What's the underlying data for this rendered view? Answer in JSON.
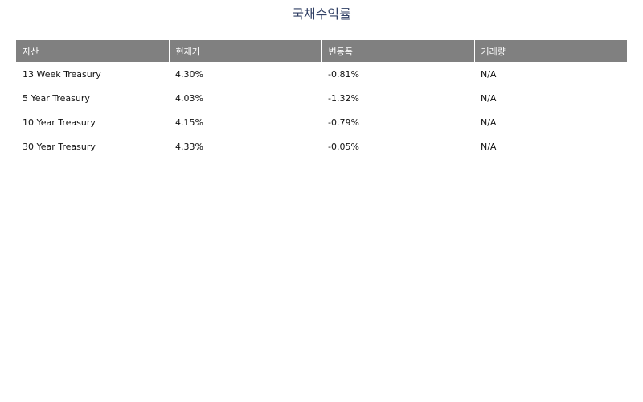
{
  "title": "국채수익률",
  "table": {
    "headers": [
      "자산",
      "현재가",
      "변동폭",
      "거래량"
    ],
    "rows": [
      [
        "13 Week Treasury",
        "4.30%",
        "-0.81%",
        "N/A"
      ],
      [
        "5 Year Treasury",
        "4.03%",
        "-1.32%",
        "N/A"
      ],
      [
        "10 Year Treasury",
        "4.15%",
        "-0.79%",
        "N/A"
      ],
      [
        "30 Year Treasury",
        "4.33%",
        "-0.05%",
        "N/A"
      ]
    ]
  },
  "colors": {
    "title": "#2f3e63",
    "header_bg": "#808080",
    "header_text": "#ffffff"
  }
}
